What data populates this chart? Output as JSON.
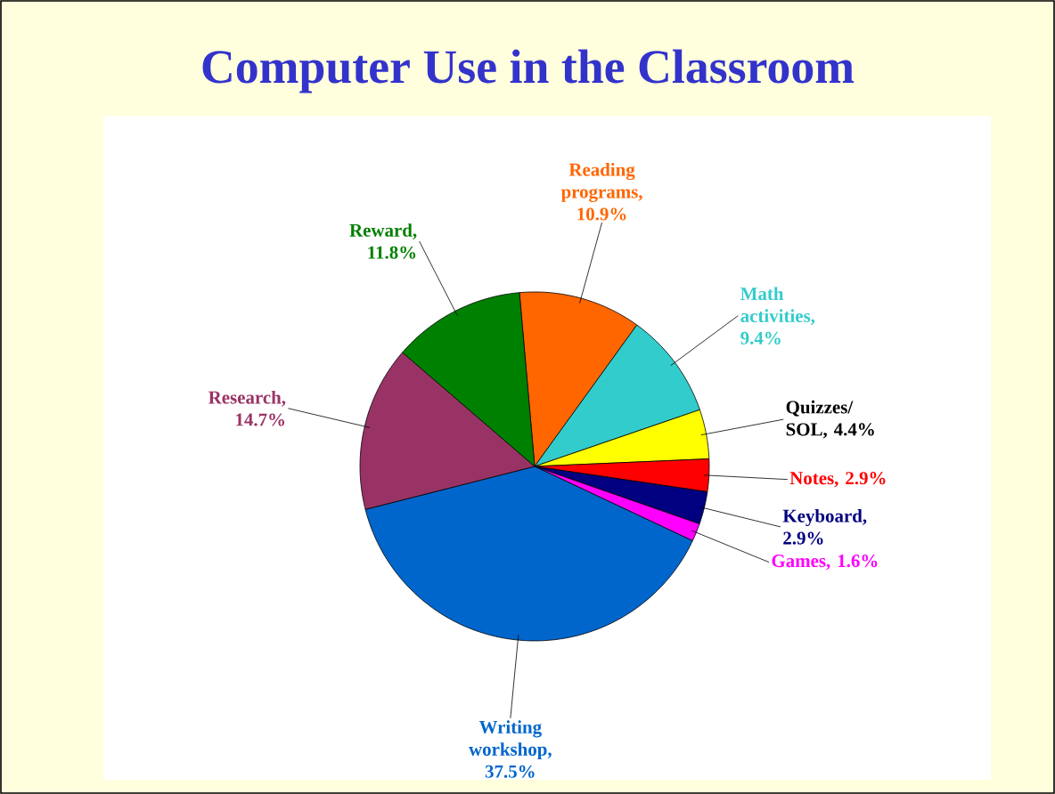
{
  "chart_data": {
    "type": "pie",
    "title": "Computer Use in the Classroom",
    "categories": [
      "Reading programs",
      "Math activities",
      "Quizzes/ SOL",
      "Notes",
      "Keyboard",
      "Games",
      "Writing workshop",
      "Research",
      "Reward"
    ],
    "values": [
      10.9,
      9.4,
      4.4,
      2.9,
      2.9,
      1.6,
      37.5,
      14.7,
      11.8
    ],
    "value_labels": [
      ", 10.9%",
      ", 9.4%",
      ", 4.4%",
      ", 2.9%",
      ", 2.9%",
      ", 1.6%",
      ", 37.5%",
      ", 14.7%",
      ", 11.8%"
    ],
    "colors": [
      "#ff6600",
      "#33cccc",
      "#ffff00",
      "#ff0000",
      "#000080",
      "#ff00ff",
      "#0066cc",
      "#993366",
      "#008000"
    ]
  }
}
